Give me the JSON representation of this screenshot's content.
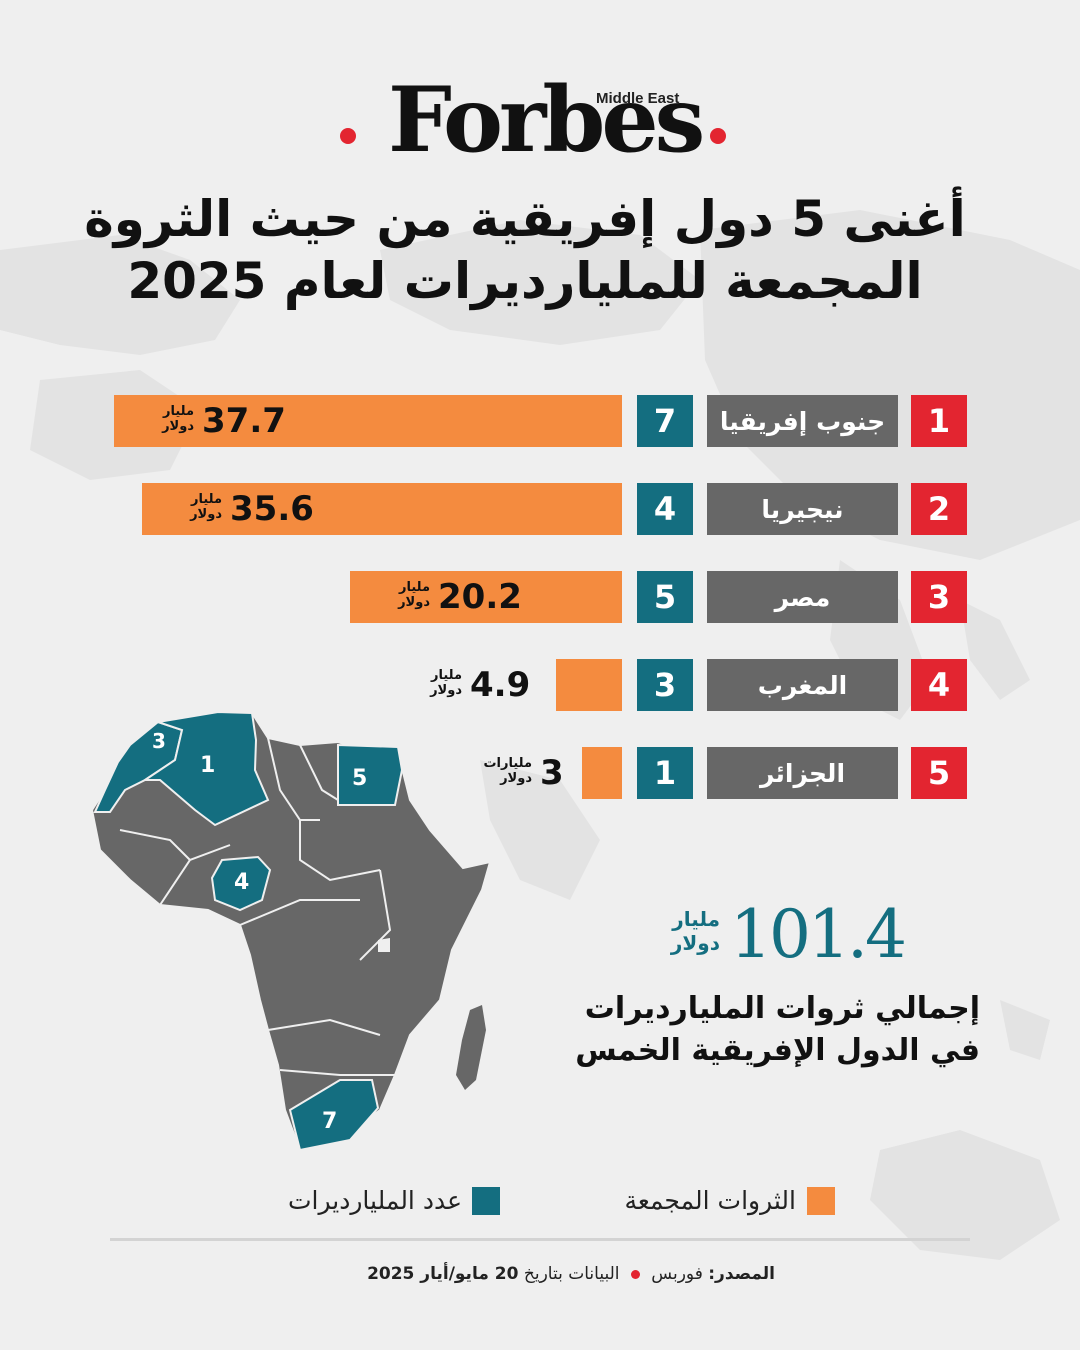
{
  "brand": {
    "logo_word": "Forbes",
    "logo_sub": "Middle East",
    "accent": "#e32530"
  },
  "title": {
    "line1": "أغنى 5 دول إفريقية من حيث الثروة",
    "line2": "المجمعة للمليارديرات لعام 2025"
  },
  "colors": {
    "rank": "#e32530",
    "country": "#676767",
    "count": "#146e80",
    "wealth": "#f48b3f",
    "map_gray": "#666666",
    "background": "#efefef"
  },
  "chart_data": {
    "type": "bar",
    "orientation": "horizontal",
    "categories": [
      "جنوب إفريقيا",
      "نيجيريا",
      "مصر",
      "المغرب",
      "الجزائر"
    ],
    "ranks": [
      "1",
      "2",
      "3",
      "4",
      "5"
    ],
    "series": [
      {
        "name": "الثروات المجمعة",
        "values": [
          37.7,
          35.6,
          20.2,
          4.9,
          3
        ]
      },
      {
        "name": "عدد المليارديرات",
        "values": [
          7,
          4,
          5,
          3,
          1
        ]
      }
    ],
    "value_labels": [
      "37.7",
      "35.6",
      "20.2",
      "4.9",
      "3"
    ],
    "count_labels": [
      "7",
      "4",
      "5",
      "3",
      "1"
    ],
    "units": [
      [
        "مليار",
        "دولار"
      ],
      [
        "مليار",
        "دولار"
      ],
      [
        "مليار",
        "دولار"
      ],
      [
        "مليار",
        "دولار"
      ],
      [
        "مليارات",
        "دولار"
      ]
    ],
    "xlim": [
      0,
      37.7
    ],
    "legend": [
      "الثروات المجمعة",
      "عدد المليارديرات"
    ],
    "legend_position": "bottom"
  },
  "map": {
    "labels": {
      "algeria": "1",
      "morocco": "3",
      "egypt": "5",
      "nigeria": "4",
      "south_africa": "7"
    }
  },
  "total": {
    "value": "101.4",
    "unit_line1": "مليار",
    "unit_line2": "دولار",
    "label_line1": "إجمالي ثروات المليارديرات",
    "label_line2": "في الدول الإفريقية الخمس"
  },
  "legend": {
    "wealth_label": "الثروات المجمعة",
    "count_label": "عدد المليارديرات"
  },
  "source": {
    "label": "المصدر:",
    "publisher": "فوربس",
    "data_prefix": "البيانات بتاريخ",
    "date": "20 مايو/أيار 2025"
  }
}
